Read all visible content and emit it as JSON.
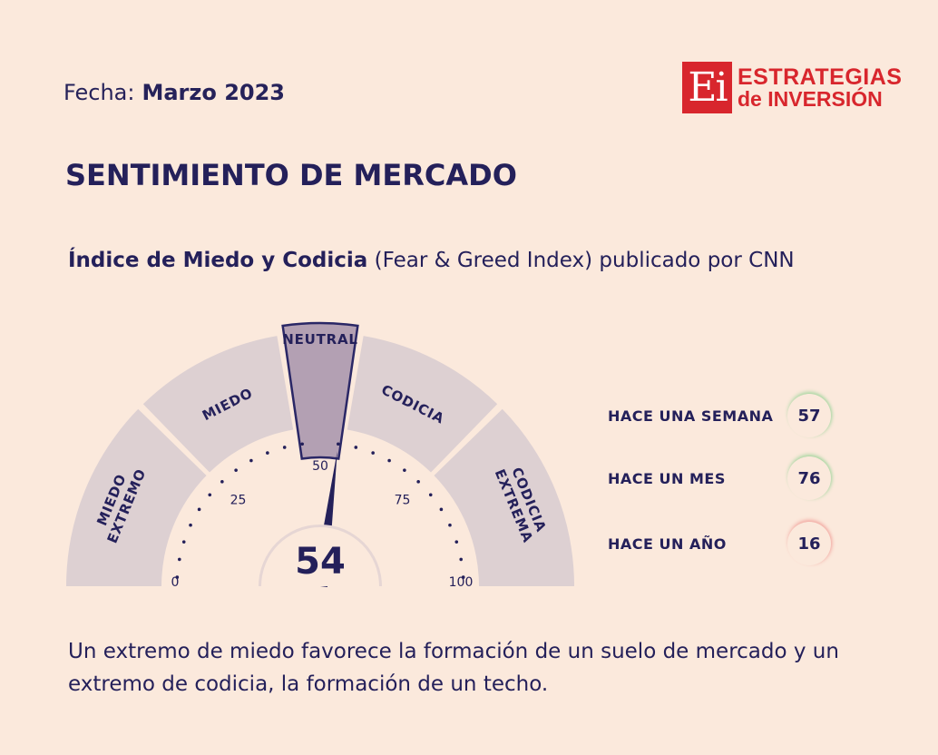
{
  "header": {
    "date_label": "Fecha:",
    "date_value": "Marzo 2023",
    "logo_mark": "Ei",
    "logo_line1": "ESTRATEGIAS",
    "logo_line2": "de INVERSIÓN"
  },
  "title": "SENTIMIENTO DE MERCADO",
  "subtitle": {
    "bold": "Índice de Miedo y Codicia",
    "rest": " (Fear & Greed Index) publicado por CNN"
  },
  "chart_data": {
    "type": "gauge",
    "value": 54,
    "min": 0,
    "max": 100,
    "ticks": [
      0,
      25,
      50,
      75,
      100
    ],
    "segments": [
      {
        "label_lines": [
          "MIEDO",
          "EXTREMO"
        ],
        "from": 0,
        "to": 25
      },
      {
        "label_lines": [
          "MIEDO"
        ],
        "from": 25,
        "to": 45
      },
      {
        "label_lines": [
          "NEUTRAL"
        ],
        "from": 45,
        "to": 55
      },
      {
        "label_lines": [
          "CODICIA"
        ],
        "from": 55,
        "to": 75
      },
      {
        "label_lines": [
          "CODICIA",
          "EXTREMA"
        ],
        "from": 75,
        "to": 100
      }
    ],
    "active_segment": "NEUTRAL",
    "history": [
      {
        "label": "HACE UNA SEMANA",
        "value": 57,
        "ring_color": "#a6d6a0"
      },
      {
        "label": "HACE UN MES",
        "value": 76,
        "ring_color": "#a6d6a0"
      },
      {
        "label": "HACE UN AÑO",
        "value": 16,
        "ring_color": "#f2a7a0"
      }
    ]
  },
  "colors": {
    "background": "#fbe9dc",
    "segment": "#ddd0d2",
    "segment_active": "#b3a0b3",
    "active_border": "#2a2766",
    "text": "#24205a",
    "brand": "#d8262d"
  },
  "footer": "Un extremo de miedo favorece la formación de un suelo de mercado y un extremo de codicia, la formación de un techo."
}
